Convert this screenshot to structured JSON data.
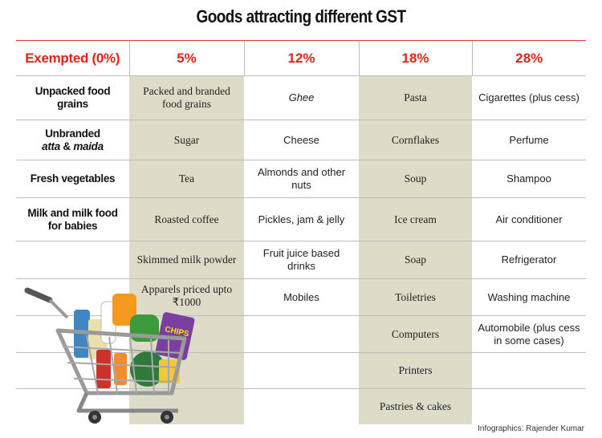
{
  "title": "Goods attracting different GST",
  "columns": [
    "Exempted (0%)",
    "5%",
    "12%",
    "18%",
    "28%"
  ],
  "rows": [
    [
      "Unpacked food grains",
      "Packed and branded food grains",
      "Ghee",
      "Pasta",
      "Cigarettes (plus cess)"
    ],
    [
      "Unbranded",
      "Sugar",
      "Cheese",
      "Cornflakes",
      "Perfume"
    ],
    [
      "Fresh vegetables",
      "Tea",
      "Almonds and other nuts",
      "Soup",
      "Shampoo"
    ],
    [
      "Milk and milk food for babies",
      "Roasted coffee",
      "Pickles, jam & jelly",
      "Ice cream",
      "Air conditioner"
    ],
    [
      "",
      "Skimmed milk powder",
      "Fruit juice based drinks",
      "Soap",
      "Refrigerator"
    ],
    [
      "",
      "Apparels priced upto ₹1000",
      "Mobiles",
      "Toiletries",
      "Washing machine"
    ],
    [
      "",
      "",
      "",
      "Computers",
      "Automobile (plus cess in some cases)"
    ],
    [
      "",
      "",
      "",
      "Printers",
      ""
    ],
    [
      "",
      "",
      "",
      "Pastries & cakes",
      ""
    ]
  ],
  "row1_col0_line2": {
    "atta": "atta",
    "amp": " & ",
    "maida": "maida"
  },
  "credit": "Infographics: Rajender Kumar",
  "illustration": {
    "name": "shopping-cart-illustration",
    "label": "CHIPS"
  }
}
